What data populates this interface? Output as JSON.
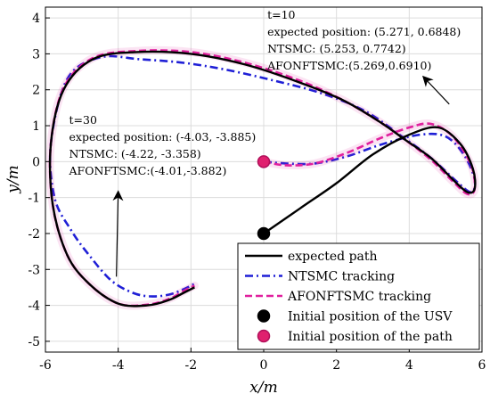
{
  "chart_data": {
    "type": "line",
    "title": "",
    "xlabel": "x/m",
    "ylabel": "y/m",
    "xlim": [
      -6,
      6
    ],
    "ylim": [
      -5.3,
      4.3
    ],
    "xticks": [
      "-6",
      "-4",
      "-2",
      "0",
      "2",
      "4",
      "6"
    ],
    "yticks": [
      "-5",
      "-4",
      "-3",
      "-2",
      "-1",
      "0",
      "1",
      "2",
      "3",
      "4"
    ],
    "grid": true,
    "legend_position": "bottom-right",
    "series": [
      {
        "name": "expected path",
        "color": "#000000",
        "style": "solid",
        "x": [
          0,
          1.0,
          2.0,
          3.0,
          4.0,
          4.8,
          5.4,
          5.75,
          5.8,
          5.6,
          5.2,
          4.6,
          3.9,
          3.2,
          2.2,
          1.0,
          -0.5,
          -2.0,
          -3.5,
          -4.7,
          -5.5,
          -5.85,
          -5.8,
          -5.4,
          -4.8,
          -4.0,
          -3.2,
          -2.6,
          -2.2,
          -1.9
        ],
        "y": [
          -2.0,
          -1.3,
          -0.6,
          0.2,
          0.75,
          0.95,
          0.5,
          -0.2,
          -0.75,
          -0.85,
          -0.5,
          0.1,
          0.6,
          1.1,
          1.7,
          2.2,
          2.7,
          3.0,
          3.05,
          2.85,
          2.0,
          0.5,
          -1.2,
          -2.6,
          -3.4,
          -3.95,
          -4.0,
          -3.85,
          -3.65,
          -3.5
        ]
      },
      {
        "name": "NTSMC tracking",
        "color": "#1f1fd6",
        "style": "dashdot",
        "x": [
          0,
          0.6,
          1.4,
          2.3,
          3.3,
          4.3,
          5.0,
          5.5,
          5.8,
          5.7,
          5.3,
          4.6,
          3.8,
          2.8,
          1.6,
          0.3,
          -1.0,
          -2.2,
          -3.4,
          -4.5,
          -5.4,
          -5.85,
          -5.75,
          -5.3,
          -4.8,
          -4.2,
          -3.6,
          -3.1,
          -2.6,
          -2.2,
          -1.9
        ],
        "y": [
          0,
          -0.05,
          -0.05,
          0.15,
          0.5,
          0.75,
          0.7,
          0.2,
          -0.5,
          -0.85,
          -0.55,
          0.1,
          0.7,
          1.4,
          1.9,
          2.25,
          2.55,
          2.75,
          2.85,
          2.9,
          2.3,
          0.5,
          -1.0,
          -1.9,
          -2.6,
          -3.3,
          -3.65,
          -3.75,
          -3.7,
          -3.55,
          -3.4
        ]
      },
      {
        "name": "AFONFTSMC tracking",
        "color": "#e0209e",
        "style": "dashed",
        "x": [
          0,
          0.6,
          1.4,
          2.3,
          3.2,
          4.0,
          4.6,
          5.2,
          5.7,
          5.8,
          5.6,
          5.2,
          4.6,
          3.9,
          3.2,
          2.2,
          1.0,
          -0.5,
          -2.0,
          -3.5,
          -4.7,
          -5.5,
          -5.85,
          -5.8,
          -5.4,
          -4.8,
          -4.0,
          -3.2,
          -2.6,
          -2.2,
          -1.9
        ],
        "y": [
          0,
          -0.1,
          -0.05,
          0.25,
          0.65,
          0.95,
          1.05,
          0.7,
          -0.1,
          -0.75,
          -0.9,
          -0.55,
          0.05,
          0.6,
          1.1,
          1.7,
          2.25,
          2.75,
          3.05,
          3.08,
          2.88,
          2.05,
          0.5,
          -1.2,
          -2.6,
          -3.4,
          -3.95,
          -3.98,
          -3.82,
          -3.6,
          -3.45
        ]
      }
    ],
    "markers": [
      {
        "name": "Initial position of the USV",
        "x": 0,
        "y": -2,
        "color": "#000000",
        "edge": "#000000"
      },
      {
        "name": "Initial position of the path",
        "x": 0,
        "y": 0,
        "color": "#e0206e",
        "edge": "#b0105a"
      }
    ],
    "annotations": [
      {
        "lines": [
          "t=10",
          "expected position:  (5.271, 0.6848)",
          "NTSMC:  (5.253, 0.7742)",
          "AFONFTSMC:(5.269,0.6910)"
        ],
        "text_at": [
          0.1,
          3.98
        ],
        "arrow_from": [
          5.1,
          1.6
        ],
        "arrow_to": [
          4.4,
          2.35
        ]
      },
      {
        "lines": [
          "t=30",
          "expected position:  (-4.03, -3.885)",
          "NTSMC:  (-4.22, -3.358)",
          "AFONFTSMC:(-4.01,-3.882)"
        ],
        "text_at": [
          -5.35,
          1.05
        ],
        "arrow_from": [
          -4.05,
          -3.2
        ],
        "arrow_to": [
          -4.0,
          -0.85
        ]
      }
    ]
  }
}
